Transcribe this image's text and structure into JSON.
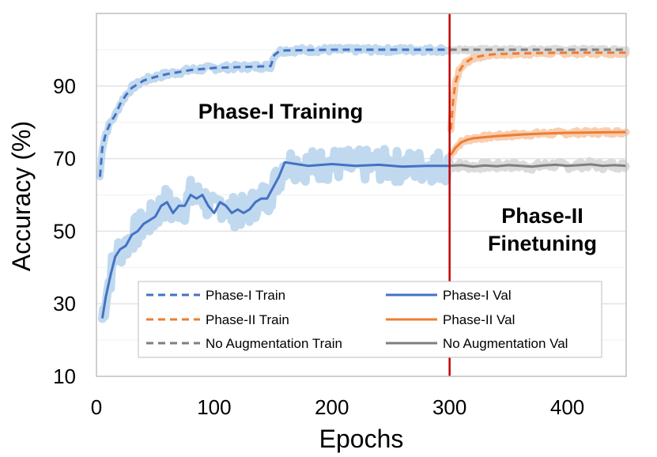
{
  "chart_data": {
    "type": "line",
    "title": "",
    "xlabel": "Epochs",
    "ylabel": "Accuracy (%)",
    "xlim": [
      0,
      450
    ],
    "ylim": [
      10,
      110
    ],
    "x_ticks": [
      0,
      100,
      200,
      300,
      400
    ],
    "y_ticks": [
      10,
      30,
      50,
      70,
      90
    ],
    "x_tick_labels": [
      "0",
      "100",
      "200",
      "300",
      "400"
    ],
    "y_tick_labels": [
      "10",
      "30",
      "50",
      "70",
      "90"
    ],
    "grid": "horizontal",
    "vertical_marker": {
      "x": 300,
      "color": "#c00000"
    },
    "annotations": [
      {
        "text": "Phase-I Training",
        "x": 155,
        "y": 92
      },
      {
        "text": "Phase-II",
        "x": 378,
        "y": 52
      },
      {
        "text": "Finetuning",
        "x": 378,
        "y": 44
      }
    ],
    "legend_position": "bottom",
    "series": [
      {
        "name": "Phase-I Train",
        "style": "dashed",
        "color": "#4472c4",
        "band_color": "#bdd7ee",
        "x": [
          3,
          5,
          8,
          12,
          16,
          20,
          25,
          30,
          40,
          50,
          60,
          80,
          100,
          120,
          140,
          148,
          151,
          155,
          160,
          200,
          250,
          300
        ],
        "values": [
          65,
          73,
          77,
          80,
          82,
          85,
          87.5,
          89.5,
          91.5,
          92.5,
          93.3,
          94.4,
          95.0,
          95.2,
          95.4,
          95.5,
          98.5,
          99.5,
          99.8,
          100,
          100,
          100
        ]
      },
      {
        "name": "Phase-I Val",
        "style": "solid",
        "color": "#4472c4",
        "band_color": "#bdd7ee",
        "x": [
          5,
          8,
          12,
          16,
          20,
          25,
          30,
          35,
          40,
          45,
          50,
          55,
          60,
          65,
          70,
          75,
          80,
          85,
          90,
          95,
          100,
          105,
          110,
          115,
          120,
          125,
          130,
          135,
          140,
          145,
          150,
          155,
          160,
          170,
          180,
          200,
          220,
          240,
          260,
          280,
          300
        ],
        "values": [
          26,
          32,
          38,
          43,
          45,
          46,
          49,
          50,
          52,
          53,
          54,
          57,
          58,
          55,
          57,
          57,
          60,
          59,
          60,
          57,
          55,
          58,
          57,
          55,
          56,
          55,
          56,
          58,
          59,
          59,
          62,
          65,
          69,
          68.5,
          68,
          68.5,
          68,
          68.3,
          67.8,
          68,
          68
        ]
      },
      {
        "name": "Phase-II Train",
        "style": "dashed",
        "color": "#ed7d31",
        "band_color": "#f8cbad",
        "x": [
          301,
          303,
          305,
          308,
          312,
          316,
          320,
          330,
          340,
          360,
          380,
          400,
          420,
          450
        ],
        "values": [
          78,
          86,
          91,
          94,
          96,
          97,
          97.8,
          98.5,
          98.8,
          99.0,
          99.1,
          99.2,
          99.2,
          99.2
        ]
      },
      {
        "name": "Phase-II Val",
        "style": "solid",
        "color": "#ed7d31",
        "band_color": "#f8cbad",
        "x": [
          301,
          305,
          310,
          315,
          320,
          330,
          340,
          360,
          380,
          400,
          420,
          450
        ],
        "values": [
          71,
          73,
          74.5,
          75.2,
          75.6,
          75.9,
          76.2,
          76.6,
          76.9,
          77.1,
          77.2,
          77.3
        ]
      },
      {
        "name": "No Augmentation Train",
        "style": "dashed",
        "color": "#7f7f7f",
        "band_color": "#d9d9d9",
        "x": [
          300,
          350,
          400,
          450
        ],
        "values": [
          100,
          100,
          100,
          100
        ]
      },
      {
        "name": "No Augmentation Val",
        "style": "solid",
        "color": "#7f7f7f",
        "band_color": "#d9d9d9",
        "x": [
          300,
          310,
          320,
          330,
          340,
          350,
          360,
          370,
          380,
          390,
          400,
          410,
          420,
          430,
          440,
          450
        ],
        "values": [
          68,
          68.2,
          67.8,
          68.1,
          67.9,
          68.2,
          68,
          67.8,
          68.1,
          68.3,
          68,
          68.2,
          68.4,
          68,
          68.2,
          68
        ]
      }
    ]
  }
}
